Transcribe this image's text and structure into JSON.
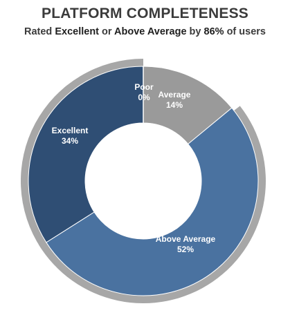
{
  "header": {
    "title": "PLATFORM COMPLETENESS",
    "subtitle_parts": [
      "Rated ",
      "Excellent",
      " or ",
      "Above Average",
      " by ",
      "86%",
      " of users"
    ]
  },
  "colors": {
    "average": "#9a9a9a",
    "above_average": "#4a72a0",
    "excellent": "#2f4e74",
    "poor": "#d9d9d9",
    "outer_ring": "#a7a7a7",
    "text_dark": "#3b3b3b"
  },
  "chart_data": {
    "type": "pie",
    "donut": true,
    "title": "PLATFORM COMPLETENESS",
    "subtitle": "Rated Excellent or Above Average by 86% of users",
    "slices": [
      {
        "name": "Average",
        "value": 14,
        "label": "Average",
        "value_label": "14%",
        "color": "#9a9a9a"
      },
      {
        "name": "Above Average",
        "value": 52,
        "label": "Above Average",
        "value_label": "52%",
        "color": "#4a72a0"
      },
      {
        "name": "Excellent",
        "value": 34,
        "label": "Excellent",
        "value_label": "34%",
        "color": "#2f4e74"
      },
      {
        "name": "Poor",
        "value": 0,
        "label": "Poor",
        "value_label": "0%",
        "color": "#d9d9d9"
      }
    ],
    "start_angle": "12 o'clock",
    "direction": "clockwise",
    "legend": "none"
  }
}
